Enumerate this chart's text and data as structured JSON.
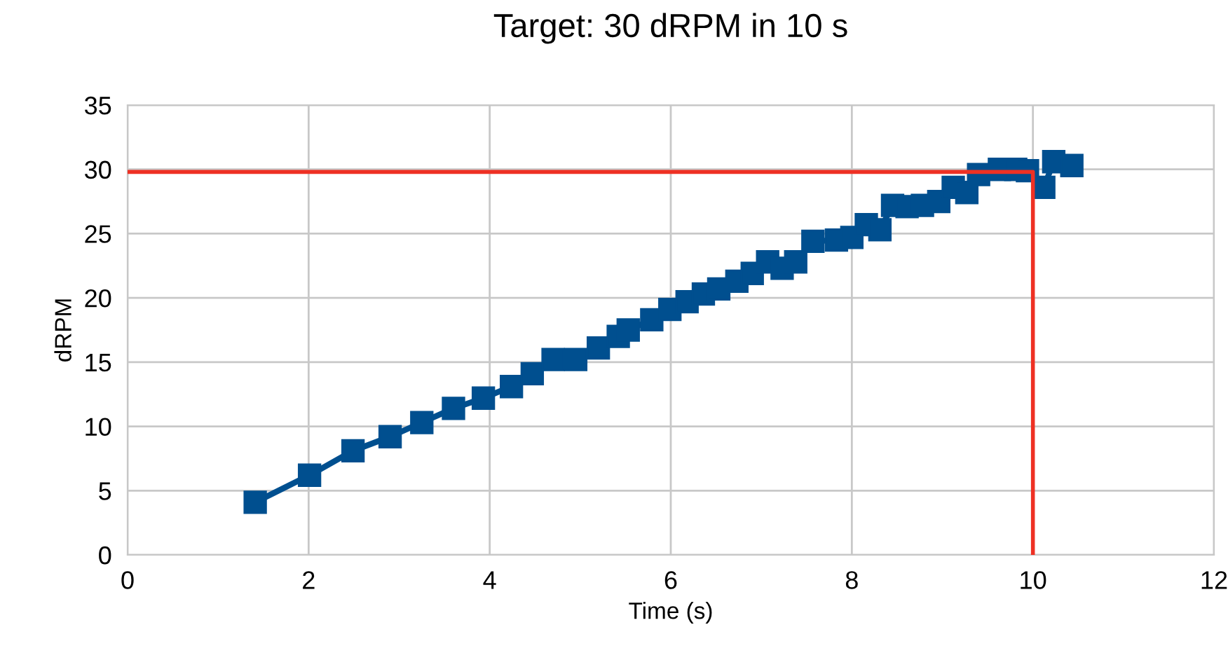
{
  "chart_data": {
    "type": "line",
    "title": "Target: 30 dRPM in 10 s",
    "xlabel": "Time (s)",
    "ylabel": "dRPM",
    "xlim": [
      0,
      12
    ],
    "xticks": [
      0,
      2,
      4,
      6,
      8,
      10,
      12
    ],
    "ylim": [
      0,
      35
    ],
    "yticks": [
      0,
      5,
      10,
      15,
      20,
      25,
      30,
      35
    ],
    "grid": true,
    "series": [
      {
        "color": "#004f8f",
        "marker": "square",
        "x": [
          1.41,
          2.01,
          2.49,
          2.9,
          3.25,
          3.6,
          3.93,
          4.24,
          4.47,
          4.7,
          4.95,
          5.2,
          5.42,
          5.53,
          5.79,
          5.99,
          6.18,
          6.36,
          6.53,
          6.73,
          6.9,
          7.07,
          7.23,
          7.38,
          7.57,
          7.83,
          8.0,
          8.16,
          8.31,
          8.45,
          8.61,
          8.78,
          8.96,
          9.12,
          9.27,
          9.4,
          9.63,
          9.81,
          9.94,
          10.12,
          10.23,
          10.43
        ],
        "values": [
          4.1,
          6.2,
          8.1,
          9.2,
          10.3,
          11.4,
          12.2,
          13.1,
          14.1,
          15.2,
          15.2,
          16.1,
          17,
          17.5,
          18.3,
          19.1,
          19.7,
          20.3,
          20.7,
          21.3,
          21.9,
          22.8,
          22.3,
          22.8,
          24.4,
          24.5,
          24.7,
          25.7,
          25.3,
          27.2,
          27.1,
          27.2,
          27.5,
          28.6,
          28.2,
          29.6,
          30.0,
          30.0,
          29.9,
          28.6,
          30.6,
          30.3
        ]
      },
      {
        "color": "#ee3124",
        "marker": "none",
        "x": [
          0,
          10,
          10
        ],
        "values": [
          29.8,
          29.8,
          0
        ]
      }
    ]
  }
}
